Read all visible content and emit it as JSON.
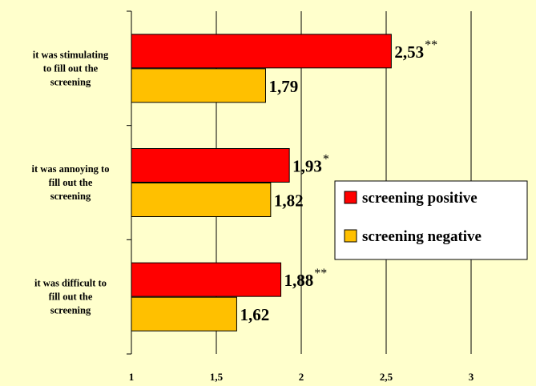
{
  "chart_data": {
    "type": "bar",
    "orientation": "horizontal",
    "categories": [
      "it was stimulating to fill out the screening",
      "it was annoying to fill out the screening",
      "it was difficult to fill out the screening"
    ],
    "category_lines": [
      [
        "it was stimulating",
        "to fill out the",
        "screening"
      ],
      [
        "it was annoying to",
        "fill out the",
        "screening"
      ],
      [
        "it was difficult to",
        "fill out the",
        "screening"
      ]
    ],
    "series": [
      {
        "name": "screening positive",
        "color": "#ff0000",
        "values": [
          2.53,
          1.93,
          1.88
        ],
        "labels": [
          "2,53",
          "1,93",
          "1,88"
        ],
        "significance": [
          "**",
          "*",
          "**"
        ]
      },
      {
        "name": "screening negative",
        "color": "#ffc000",
        "values": [
          1.79,
          1.82,
          1.62
        ],
        "labels": [
          "1,79",
          "1,82",
          "1,62"
        ],
        "significance": [
          "",
          "",
          ""
        ]
      }
    ],
    "xlim": [
      1,
      3
    ],
    "x_ticks": [
      1,
      1.5,
      2,
      2.5,
      3
    ],
    "x_tick_labels": [
      "1",
      "1,5",
      "2",
      "2,5",
      "3"
    ],
    "grid": "vertical",
    "legend_position": "right",
    "title": "",
    "xlabel": "",
    "ylabel": ""
  }
}
